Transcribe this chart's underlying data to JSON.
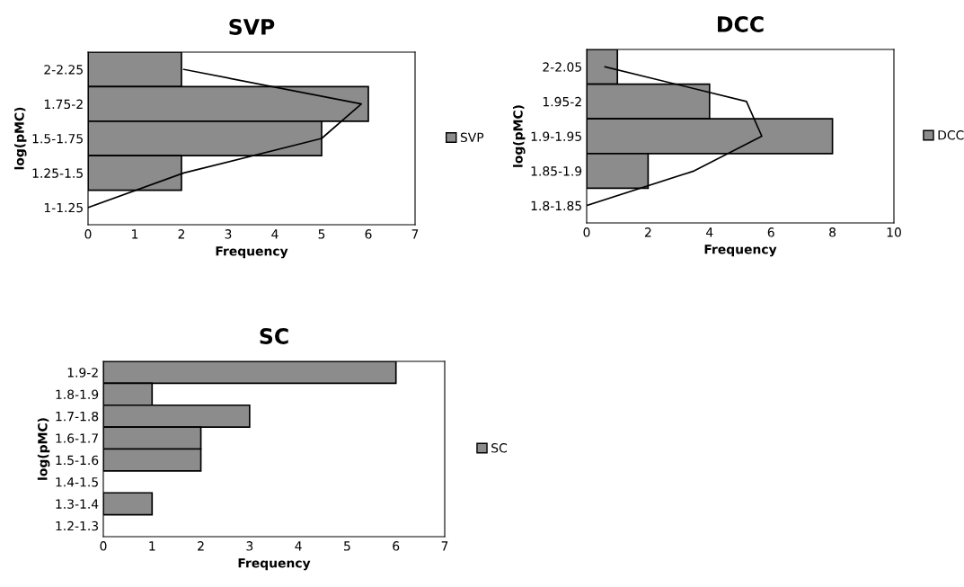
{
  "chart_data": [
    {
      "type": "bar",
      "orientation": "horizontal",
      "title": "SVP",
      "xlabel": "Frequency",
      "ylabel": "log(pMC)",
      "categories": [
        "2-2.25",
        "1.75-2",
        "1.5-1.75",
        "1.25-1.5",
        "1-1.25"
      ],
      "series": [
        {
          "name": "SVP",
          "color": "#8c8c8c",
          "values": [
            2,
            6,
            5,
            2,
            0
          ]
        },
        {
          "type": "line",
          "color": "#000000",
          "values": [
            2.05,
            5.85,
            5.0,
            2.05,
            0
          ]
        }
      ],
      "xlim": [
        0,
        7
      ],
      "xticks": [
        0,
        1,
        2,
        3,
        4,
        5,
        6,
        7
      ],
      "legend": "right"
    },
    {
      "type": "bar",
      "orientation": "horizontal",
      "title": "DCC",
      "xlabel": "Frequency",
      "ylabel": "log(pMC)",
      "categories": [
        "2-2.05",
        "1.95-2",
        "1.9-1.95",
        "1.85-1.9",
        "1.8-1.85"
      ],
      "series": [
        {
          "name": "DCC",
          "color": "#8c8c8c",
          "values": [
            1,
            4,
            8,
            2,
            0
          ]
        },
        {
          "type": "line",
          "color": "#000000",
          "values": [
            0.6,
            5.2,
            5.7,
            3.5,
            0
          ]
        }
      ],
      "xlim": [
        0,
        10
      ],
      "xticks": [
        0,
        2,
        4,
        6,
        8,
        10
      ],
      "legend": "right"
    },
    {
      "type": "bar",
      "orientation": "horizontal",
      "title": "SC",
      "xlabel": "Frequency",
      "ylabel": "log(pMC)",
      "categories": [
        "1.9-2",
        "1.8-1.9",
        "1.7-1.8",
        "1.6-1.7",
        "1.5-1.6",
        "1.4-1.5",
        "1.3-1.4",
        "1.2-1.3"
      ],
      "series": [
        {
          "name": "SC",
          "color": "#8c8c8c",
          "values": [
            6,
            1,
            3,
            2,
            2,
            0,
            1,
            0
          ]
        }
      ],
      "xlim": [
        0,
        7
      ],
      "xticks": [
        0,
        1,
        2,
        3,
        4,
        5,
        6,
        7
      ],
      "legend": "right"
    }
  ]
}
